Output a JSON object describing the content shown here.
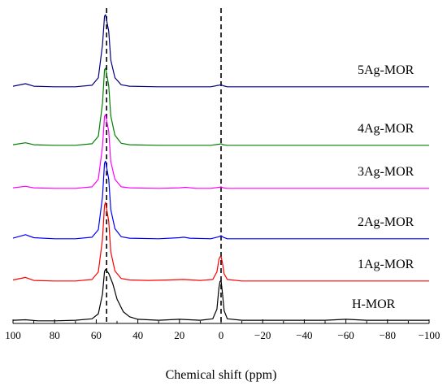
{
  "chart_data": {
    "type": "line",
    "title": "",
    "xlabel": "Chemical shift (ppm)",
    "ylabel": "",
    "xlim": [
      100,
      -100
    ],
    "x_reversed": true,
    "x_ticks": [
      100,
      80,
      60,
      40,
      20,
      0,
      -20,
      -40,
      -60,
      -80,
      -100
    ],
    "x_tick_labels": [
      "100",
      "80",
      "60",
      "40",
      "20",
      "0",
      "−20",
      "−40",
      "−60",
      "−80",
      "−100"
    ],
    "y_ticks": false,
    "stacked_offsets": true,
    "grid": false,
    "legend": "labels above each trace on the right",
    "reference_lines": [
      55,
      0
    ],
    "reference_line_style": "dashed",
    "series": [
      {
        "name": "H-MOR",
        "color": "#000000",
        "points": [
          [
            100,
            0.03
          ],
          [
            94,
            0.04
          ],
          [
            88,
            0.02
          ],
          [
            80,
            0.02
          ],
          [
            70,
            0.03
          ],
          [
            62,
            0.06
          ],
          [
            59,
            0.16
          ],
          [
            57,
            0.55
          ],
          [
            56,
            1.0
          ],
          [
            55.5,
            1.04
          ],
          [
            54,
            0.96
          ],
          [
            52,
            0.75
          ],
          [
            50,
            0.45
          ],
          [
            47,
            0.2
          ],
          [
            44,
            0.1
          ],
          [
            40,
            0.05
          ],
          [
            30,
            0.03
          ],
          [
            20,
            0.05
          ],
          [
            10,
            0.03
          ],
          [
            4,
            0.06
          ],
          [
            2,
            0.25
          ],
          [
            1,
            0.68
          ],
          [
            0.5,
            0.8
          ],
          [
            0,
            0.82
          ],
          [
            -0.6,
            0.6
          ],
          [
            -1.5,
            0.22
          ],
          [
            -3,
            0.06
          ],
          [
            -10,
            0.03
          ],
          [
            -30,
            0.03
          ],
          [
            -50,
            0.03
          ],
          [
            -60,
            0.05
          ],
          [
            -70,
            0.03
          ],
          [
            -85,
            0.03
          ],
          [
            -100,
            0.03
          ]
        ]
      },
      {
        "name": "1Ag-MOR",
        "color": "#ff0000",
        "points": [
          [
            100,
            0.04
          ],
          [
            94,
            0.09
          ],
          [
            90,
            0.03
          ],
          [
            80,
            0.02
          ],
          [
            70,
            0.02
          ],
          [
            62,
            0.05
          ],
          [
            59,
            0.2
          ],
          [
            57,
            0.85
          ],
          [
            56,
            1.52
          ],
          [
            55.5,
            1.58
          ],
          [
            54,
            1.2
          ],
          [
            53,
            0.6
          ],
          [
            51,
            0.22
          ],
          [
            48,
            0.07
          ],
          [
            44,
            0.04
          ],
          [
            35,
            0.03
          ],
          [
            25,
            0.04
          ],
          [
            18,
            0.05
          ],
          [
            10,
            0.03
          ],
          [
            4,
            0.05
          ],
          [
            2,
            0.2
          ],
          [
            1,
            0.45
          ],
          [
            0.5,
            0.5
          ],
          [
            0,
            0.5
          ],
          [
            -0.6,
            0.4
          ],
          [
            -1.5,
            0.16
          ],
          [
            -3,
            0.05
          ],
          [
            -10,
            0.02
          ],
          [
            -50,
            0.02
          ],
          [
            -100,
            0.02
          ]
        ]
      },
      {
        "name": "2Ag-MOR",
        "color": "#0000ff",
        "points": [
          [
            100,
            0.03
          ],
          [
            94,
            0.1
          ],
          [
            90,
            0.04
          ],
          [
            80,
            0.02
          ],
          [
            70,
            0.02
          ],
          [
            62,
            0.05
          ],
          [
            59,
            0.2
          ],
          [
            57,
            0.85
          ],
          [
            56,
            1.52
          ],
          [
            55.5,
            1.56
          ],
          [
            54,
            1.2
          ],
          [
            53,
            0.6
          ],
          [
            51,
            0.22
          ],
          [
            48,
            0.06
          ],
          [
            44,
            0.03
          ],
          [
            30,
            0.02
          ],
          [
            20,
            0.04
          ],
          [
            18,
            0.05
          ],
          [
            15,
            0.03
          ],
          [
            5,
            0.02
          ],
          [
            1,
            0.06
          ],
          [
            0,
            0.08
          ],
          [
            -1,
            0.05
          ],
          [
            -3,
            0.02
          ],
          [
            -50,
            0.02
          ],
          [
            -100,
            0.02
          ]
        ]
      },
      {
        "name": "3Ag-MOR",
        "color": "#ff00ff",
        "points": [
          [
            100,
            0.03
          ],
          [
            94,
            0.06
          ],
          [
            90,
            0.03
          ],
          [
            80,
            0.02
          ],
          [
            70,
            0.02
          ],
          [
            62,
            0.05
          ],
          [
            59,
            0.2
          ],
          [
            57,
            0.85
          ],
          [
            56,
            1.45
          ],
          [
            55.5,
            1.48
          ],
          [
            54,
            1.15
          ],
          [
            53,
            0.55
          ],
          [
            51,
            0.2
          ],
          [
            48,
            0.05
          ],
          [
            44,
            0.03
          ],
          [
            30,
            0.02
          ],
          [
            20,
            0.03
          ],
          [
            17,
            0.04
          ],
          [
            12,
            0.02
          ],
          [
            5,
            0.02
          ],
          [
            1,
            0.04
          ],
          [
            0,
            0.05
          ],
          [
            -1,
            0.03
          ],
          [
            -3,
            0.02
          ],
          [
            -50,
            0.02
          ],
          [
            -100,
            0.02
          ]
        ]
      },
      {
        "name": "4Ag-MOR",
        "color": "#008000",
        "points": [
          [
            100,
            0.03
          ],
          [
            94,
            0.07
          ],
          [
            90,
            0.03
          ],
          [
            80,
            0.02
          ],
          [
            70,
            0.02
          ],
          [
            62,
            0.05
          ],
          [
            59,
            0.2
          ],
          [
            57,
            0.85
          ],
          [
            56,
            1.52
          ],
          [
            55.5,
            1.55
          ],
          [
            54,
            1.2
          ],
          [
            53,
            0.6
          ],
          [
            51,
            0.22
          ],
          [
            48,
            0.06
          ],
          [
            44,
            0.03
          ],
          [
            30,
            0.02
          ],
          [
            20,
            0.02
          ],
          [
            10,
            0.02
          ],
          [
            5,
            0.02
          ],
          [
            1,
            0.04
          ],
          [
            0,
            0.05
          ],
          [
            -1,
            0.03
          ],
          [
            -3,
            0.02
          ],
          [
            -50,
            0.02
          ],
          [
            -100,
            0.02
          ]
        ]
      },
      {
        "name": "5Ag-MOR",
        "color": "#000080",
        "points": [
          [
            100,
            0.03
          ],
          [
            94,
            0.08
          ],
          [
            90,
            0.03
          ],
          [
            80,
            0.02
          ],
          [
            70,
            0.02
          ],
          [
            62,
            0.05
          ],
          [
            59,
            0.2
          ],
          [
            57,
            0.85
          ],
          [
            56,
            1.42
          ],
          [
            55.5,
            1.45
          ],
          [
            54,
            1.12
          ],
          [
            53,
            0.55
          ],
          [
            51,
            0.2
          ],
          [
            48,
            0.06
          ],
          [
            44,
            0.03
          ],
          [
            30,
            0.02
          ],
          [
            20,
            0.02
          ],
          [
            10,
            0.02
          ],
          [
            5,
            0.02
          ],
          [
            1,
            0.05
          ],
          [
            0,
            0.06
          ],
          [
            -1,
            0.04
          ],
          [
            -3,
            0.02
          ],
          [
            -50,
            0.02
          ],
          [
            -100,
            0.02
          ]
        ]
      }
    ]
  }
}
